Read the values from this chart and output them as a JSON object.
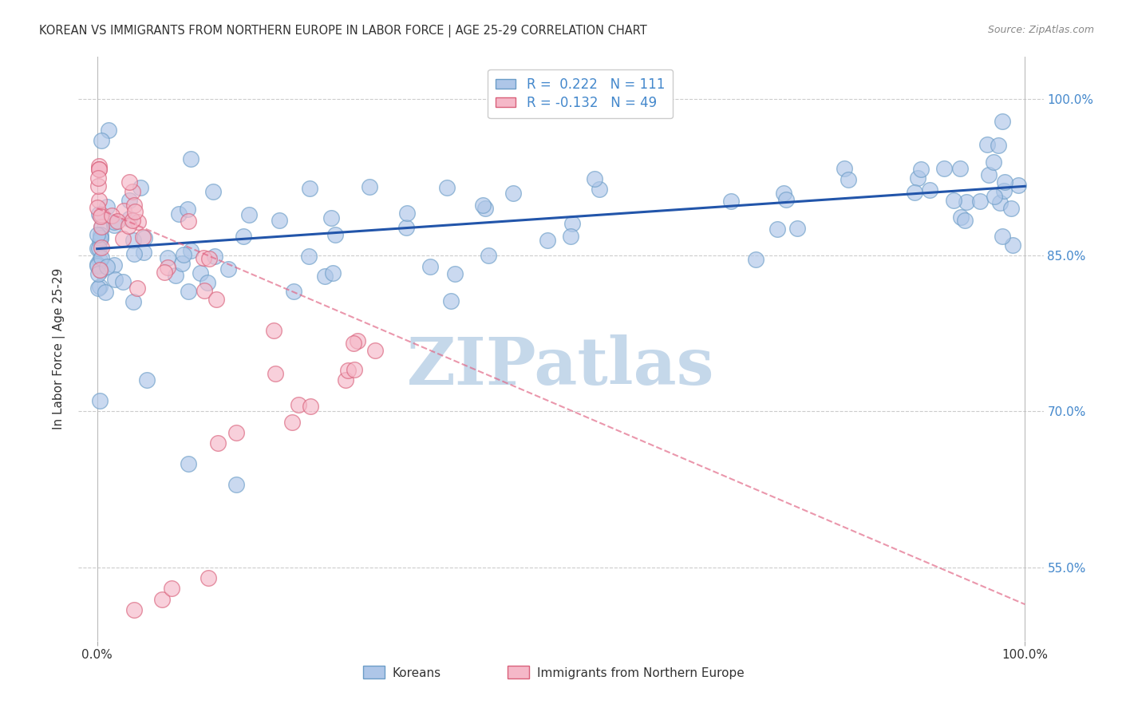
{
  "title": "KOREAN VS IMMIGRANTS FROM NORTHERN EUROPE IN LABOR FORCE | AGE 25-29 CORRELATION CHART",
  "source_text": "Source: ZipAtlas.com",
  "ylabel": "In Labor Force | Age 25-29",
  "xlim": [
    -0.02,
    1.02
  ],
  "ylim": [
    0.48,
    1.04
  ],
  "ytick_vals": [
    0.55,
    0.7,
    0.85,
    1.0
  ],
  "ytick_labels": [
    "55.0%",
    "70.0%",
    "85.0%",
    "100.0%"
  ],
  "korean_R": 0.222,
  "korean_N": 111,
  "northern_europe_R": -0.132,
  "northern_europe_N": 49,
  "korean_color": "#aec6e8",
  "korean_edge_color": "#6b9dc7",
  "northern_europe_color": "#f5b8c8",
  "northern_europe_edge_color": "#d9607a",
  "trend_korean_color": "#2255aa",
  "trend_northern_color": "#e06080",
  "watermark_color": "#c5d8ea",
  "background_color": "#ffffff",
  "title_color": "#333333",
  "source_color": "#888888",
  "yticklabel_color": "#4488cc",
  "xticklabel_color": "#333333"
}
